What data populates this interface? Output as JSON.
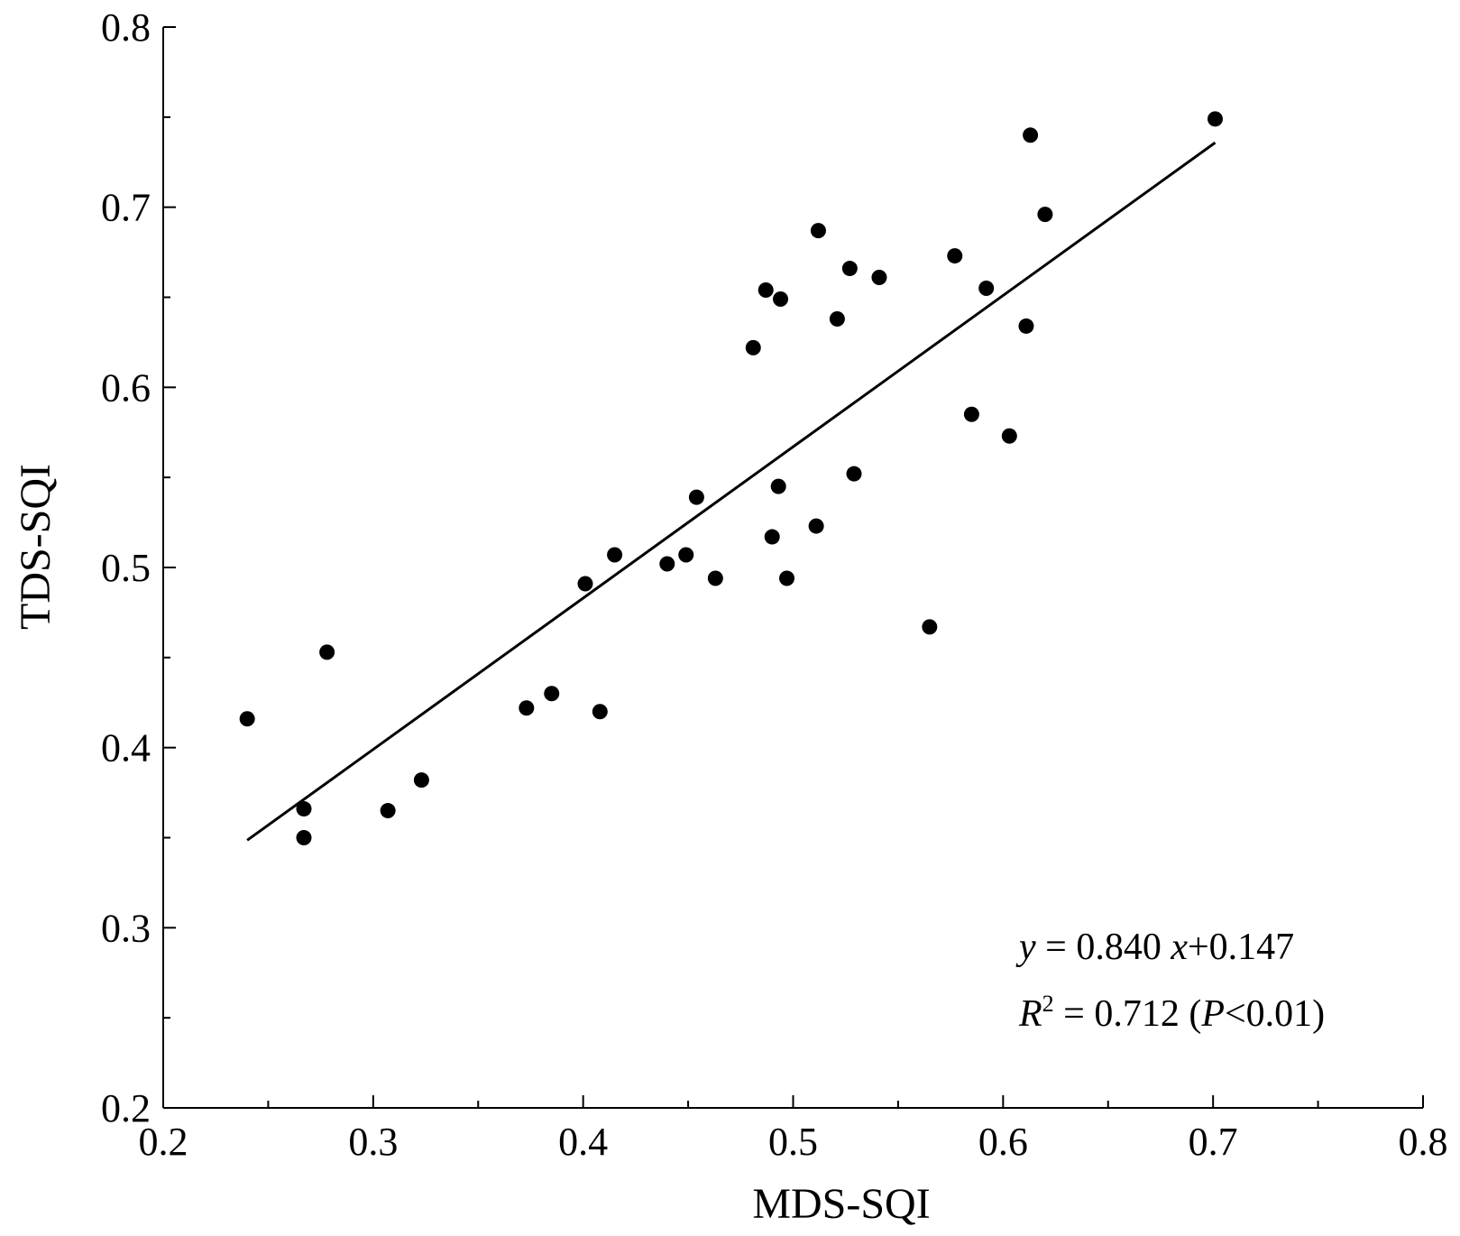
{
  "chart_data": {
    "type": "scatter",
    "xlabel": "MDS-SQI",
    "ylabel": "TDS-SQI",
    "xlim": [
      0.2,
      0.8
    ],
    "ylim": [
      0.2,
      0.8
    ],
    "x_ticks": [
      "0.2",
      "0.3",
      "0.4",
      "0.5",
      "0.6",
      "0.7",
      "0.8"
    ],
    "y_ticks": [
      "0.2",
      "0.3",
      "0.4",
      "0.5",
      "0.6",
      "0.7",
      "0.8"
    ],
    "grid": false,
    "legend": "none",
    "points": [
      [
        0.24,
        0.416
      ],
      [
        0.267,
        0.366
      ],
      [
        0.267,
        0.35
      ],
      [
        0.278,
        0.453
      ],
      [
        0.307,
        0.365
      ],
      [
        0.323,
        0.382
      ],
      [
        0.373,
        0.422
      ],
      [
        0.385,
        0.43
      ],
      [
        0.401,
        0.491
      ],
      [
        0.408,
        0.42
      ],
      [
        0.415,
        0.507
      ],
      [
        0.44,
        0.502
      ],
      [
        0.449,
        0.507
      ],
      [
        0.454,
        0.539
      ],
      [
        0.463,
        0.494
      ],
      [
        0.481,
        0.622
      ],
      [
        0.487,
        0.654
      ],
      [
        0.49,
        0.517
      ],
      [
        0.493,
        0.545
      ],
      [
        0.494,
        0.649
      ],
      [
        0.497,
        0.494
      ],
      [
        0.511,
        0.523
      ],
      [
        0.512,
        0.687
      ],
      [
        0.521,
        0.638
      ],
      [
        0.527,
        0.666
      ],
      [
        0.529,
        0.552
      ],
      [
        0.541,
        0.661
      ],
      [
        0.565,
        0.467
      ],
      [
        0.577,
        0.673
      ],
      [
        0.585,
        0.585
      ],
      [
        0.592,
        0.655
      ],
      [
        0.603,
        0.573
      ],
      [
        0.611,
        0.634
      ],
      [
        0.613,
        0.74
      ],
      [
        0.62,
        0.696
      ],
      [
        0.701,
        0.749
      ]
    ],
    "fit_line": {
      "slope": 0.84,
      "intercept": 0.147,
      "x_range": [
        0.24,
        0.701
      ]
    },
    "marker_color": "#000000",
    "line_color": "#000000",
    "annotation": {
      "line1": {
        "y": "y",
        "eq": " = 0.840 ",
        "x": "x",
        "rest": "+0.147"
      },
      "line2": {
        "R": "R",
        "sup": "2",
        "eq": " = 0.712 (",
        "P": "P",
        "rest": "<0.01)"
      }
    }
  }
}
